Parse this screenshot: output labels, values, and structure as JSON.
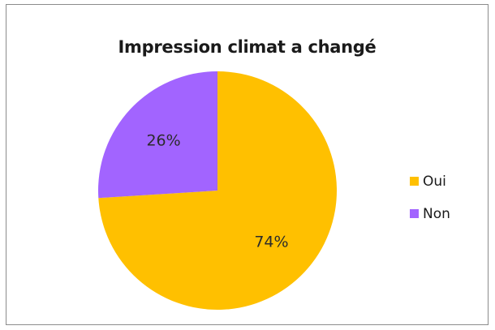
{
  "chart_data": {
    "type": "pie",
    "title": "Impression climat a changé",
    "categories": [
      "Oui",
      "Non"
    ],
    "values": [
      74,
      26
    ],
    "labels": [
      "74%",
      "26%"
    ],
    "colors": [
      "#FFC000",
      "#A264FF"
    ],
    "start_angle_deg": 0,
    "direction": "clockwise",
    "legend_position": "right"
  }
}
